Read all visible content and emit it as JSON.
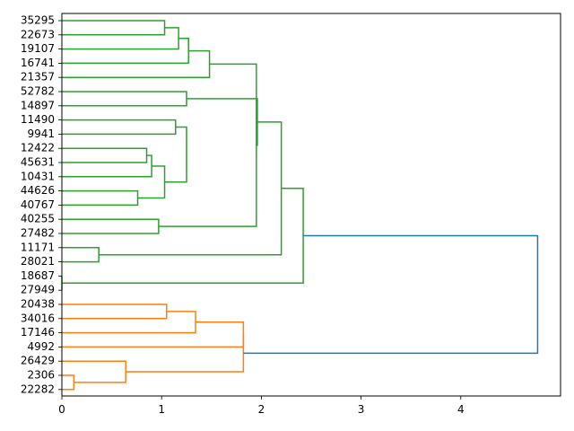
{
  "chart_data": {
    "type": "dendrogram",
    "orientation": "left",
    "title": "",
    "xlabel": "",
    "ylabel": "",
    "xlim": [
      0,
      5.0
    ],
    "x_ticks": [
      0,
      1,
      2,
      3,
      4
    ],
    "grid": false,
    "leaf_labels": [
      "35295",
      "22673",
      "19107",
      "16741",
      "21357",
      "52782",
      "14897",
      "11490",
      "9941",
      "12422",
      "45631",
      "10431",
      "44626",
      "40767",
      "40255",
      "27482",
      "11171",
      "28021",
      "18687",
      "27949",
      "20438",
      "34016",
      "17146",
      "4992",
      "26429",
      "2306",
      "22282"
    ],
    "colors": {
      "upper_cluster": "#2ca02c",
      "lower_cluster": "#ff7f0e",
      "root": "#1f77b4",
      "axes": "#000000"
    },
    "merges": [
      {
        "left": 0,
        "right": 1,
        "height": 1.03,
        "color": "upper_cluster"
      },
      {
        "left": 27,
        "right": 2,
        "height": 1.17,
        "color": "upper_cluster"
      },
      {
        "left": 28,
        "right": 3,
        "height": 1.27,
        "color": "upper_cluster"
      },
      {
        "left": 5,
        "right": 6,
        "height": 1.25,
        "color": "upper_cluster"
      },
      {
        "left": 29,
        "right": 4,
        "height": 1.48,
        "color": "upper_cluster"
      },
      {
        "left": 7,
        "right": 8,
        "height": 1.14,
        "color": "upper_cluster"
      },
      {
        "left": 9,
        "right": 10,
        "height": 0.85,
        "color": "upper_cluster"
      },
      {
        "left": 11,
        "right": 33,
        "height": 0.9,
        "color": "upper_cluster"
      },
      {
        "left": 12,
        "right": 13,
        "height": 0.76,
        "color": "upper_cluster"
      },
      {
        "left": 34,
        "right": 35,
        "height": 1.03,
        "color": "upper_cluster"
      },
      {
        "left": 32,
        "right": 36,
        "height": 1.25,
        "color": "upper_cluster"
      },
      {
        "left": 14,
        "right": 15,
        "height": 0.97,
        "color": "upper_cluster"
      },
      {
        "left": 31,
        "right": 38,
        "height": 1.95,
        "color": "upper_cluster"
      },
      {
        "left": 16,
        "right": 17,
        "height": 0.37,
        "color": "upper_cluster"
      },
      {
        "left": 30,
        "right": 39,
        "height": 1.96,
        "color": "upper_cluster"
      },
      {
        "left": 40,
        "right": 41,
        "height": 2.2,
        "color": "upper_cluster"
      },
      {
        "left": 18,
        "right": 19,
        "height": 0.0,
        "color": "upper_cluster"
      },
      {
        "left": 42,
        "right": 43,
        "height": 2.42,
        "color": "upper_cluster"
      },
      {
        "left": 20,
        "right": 21,
        "height": 1.05,
        "color": "lower_cluster"
      },
      {
        "left": 45,
        "right": 22,
        "height": 1.34,
        "color": "lower_cluster"
      },
      {
        "left": 46,
        "right": 23,
        "height": 1.82,
        "color": "lower_cluster"
      },
      {
        "left": 25,
        "right": 26,
        "height": 0.12,
        "color": "lower_cluster"
      },
      {
        "left": 24,
        "right": 48,
        "height": 0.64,
        "color": "lower_cluster"
      },
      {
        "left": 47,
        "right": 49,
        "height": 1.82,
        "color": "lower_cluster"
      },
      {
        "left": 44,
        "right": 50,
        "height": 4.77,
        "color": "root"
      }
    ]
  }
}
